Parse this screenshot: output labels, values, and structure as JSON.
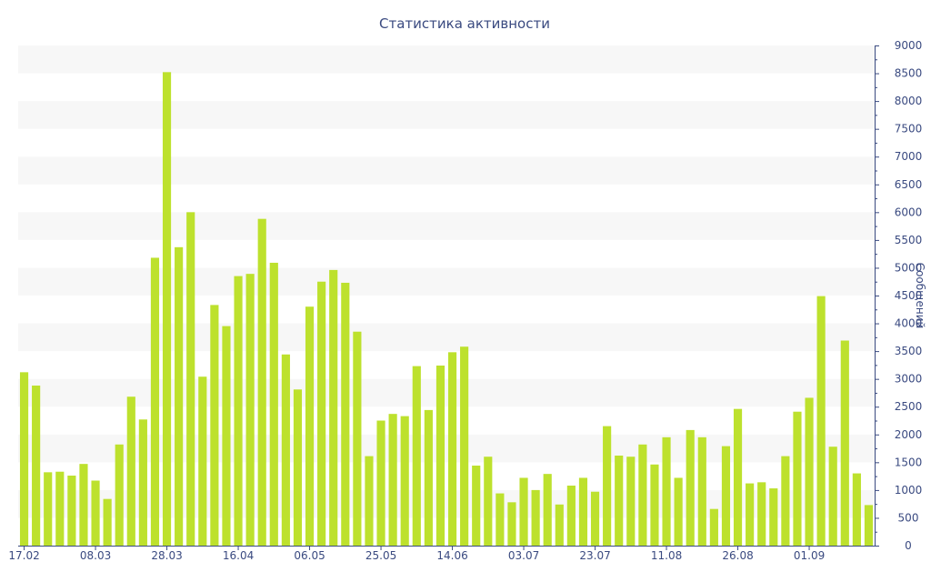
{
  "chart_data": {
    "type": "bar",
    "title": "Статистика активности",
    "ylabel": "Сообщений",
    "xlabel": "",
    "ylim": [
      0,
      9000
    ],
    "yticks": [
      0,
      500,
      1000,
      1500,
      2000,
      2500,
      3000,
      3500,
      4000,
      4500,
      5000,
      5500,
      6000,
      6500,
      7000,
      7500,
      8000,
      8500,
      9000
    ],
    "y_axis_side": "right",
    "grid": "alternating horizontal bands",
    "x_tick_labels": [
      {
        "index": 0,
        "label": "17.02"
      },
      {
        "index": 6,
        "label": "08.03"
      },
      {
        "index": 12,
        "label": "28.03"
      },
      {
        "index": 18,
        "label": "16.04"
      },
      {
        "index": 24,
        "label": "06.05"
      },
      {
        "index": 30,
        "label": "25.05"
      },
      {
        "index": 36,
        "label": "14.06"
      },
      {
        "index": 42,
        "label": "03.07"
      },
      {
        "index": 48,
        "label": "23.07"
      },
      {
        "index": 54,
        "label": "11.08"
      },
      {
        "index": 60,
        "label": "26.08"
      },
      {
        "index": 66,
        "label": "01.09"
      }
    ],
    "bar_color": "#bde12d",
    "series": [
      {
        "values": [
          3120,
          2880,
          1320,
          1330,
          1260,
          1470,
          1170,
          840,
          1820,
          2680,
          2270,
          5180,
          8520,
          5370,
          6000,
          3040,
          4330,
          3950,
          4850,
          4890,
          5880,
          5090,
          3440,
          2810,
          4300,
          4750,
          4960,
          4730,
          3850,
          1610,
          2250,
          2370,
          2330,
          3230,
          2440,
          3240,
          3480,
          3580,
          1440,
          1600,
          940,
          780,
          1220,
          1000,
          1290,
          740,
          1080,
          1220,
          970,
          2150,
          1620,
          1600,
          1820,
          1460,
          1950,
          1220,
          2080,
          1950,
          660,
          1790,
          2460,
          1120,
          1140,
          1030,
          1610,
          2410,
          2660,
          4490,
          1780,
          3690,
          1300,
          730
        ]
      }
    ]
  }
}
